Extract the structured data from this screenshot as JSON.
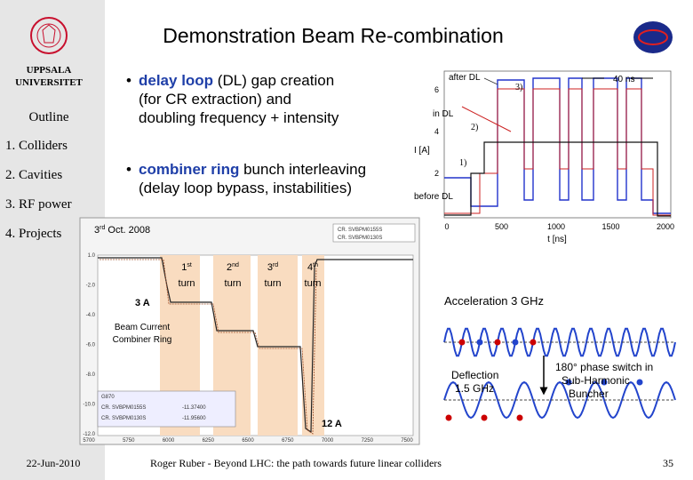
{
  "header": {
    "title": "Demonstration Beam Re-combination"
  },
  "sidebar": {
    "logo_line1": "UPPSALA",
    "logo_line2": "UNIVERSITET",
    "outline": "Outline",
    "items": [
      "1. Colliders",
      "2. Cavities",
      "3. RF power",
      "4. Projects"
    ]
  },
  "bullets": [
    {
      "bold": "delay loop",
      "lines": [
        " (DL) gap creation",
        "(for CR extraction) and",
        "doubling frequency + intensity"
      ]
    },
    {
      "bold": "combiner ring",
      "lines": [
        " bunch interleaving",
        "(delay loop bypass, instabilities)"
      ]
    }
  ],
  "top_plot": {
    "after": "after DL",
    "in": "in DL",
    "before": "before DL",
    "spacing": "40 ns",
    "markers": [
      "1)",
      "2)",
      "3)"
    ],
    "ylabel": "I [A]",
    "xlabel": "t [ns]",
    "xticks": [
      "0",
      "500",
      "1000",
      "1500",
      "2000"
    ],
    "yticks": [
      "2",
      "4",
      "6"
    ]
  },
  "bottom_plot": {
    "date_num": "3",
    "date_sup": "rd",
    "date_rest": " Oct. 2008",
    "turns": [
      {
        "num": "1",
        "sup": "st",
        "word": "turn"
      },
      {
        "num": "2",
        "sup": "nd",
        "word": "turn"
      },
      {
        "num": "3",
        "sup": "rd",
        "word": "turn"
      },
      {
        "num": "4",
        "sup": "th",
        "word": "turn"
      }
    ],
    "low": "3 A",
    "high": "12 A",
    "caption": [
      "Beam Current",
      "Combiner Ring"
    ],
    "legend": [
      "CR. SVBPM0155S",
      "CR. SVBPM0130S"
    ],
    "table": {
      "title": "G870",
      "rows": [
        [
          "CR. SVBPM0155S",
          "-11.37400"
        ],
        [
          "CR. SVBPM0130S",
          "-11.95600"
        ]
      ]
    },
    "xticks": [
      "5700",
      "5750",
      "6000",
      "6250",
      "6500",
      "6750",
      "7000",
      "7250",
      "7500"
    ],
    "yticks": [
      "1.0",
      "-2.0",
      "-4.0",
      "-6.0",
      "-8.0",
      "-10.0",
      "-12.0"
    ]
  },
  "diagram": {
    "acceleration": "Acceleration 3 GHz",
    "deflection": [
      "Deflection",
      "1.5 GHz"
    ],
    "phase": [
      "180° phase switch in",
      "Sub-Harmonic",
      "Buncher"
    ]
  },
  "footer": {
    "date": "22-Jun-2010",
    "text": "Roger Ruber - Beyond LHC: the path towards future linear colliders",
    "page": "35"
  }
}
